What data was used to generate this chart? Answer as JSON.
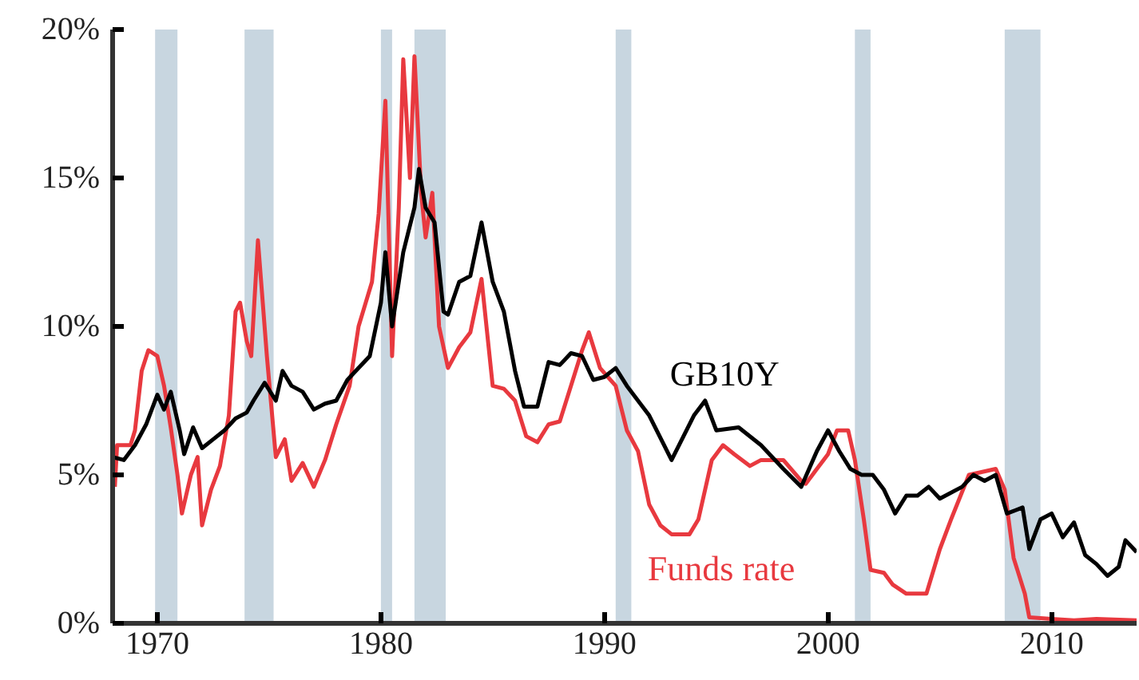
{
  "chart_data": {
    "type": "line",
    "xlim": [
      1968,
      2013.8
    ],
    "ylim": [
      0,
      20
    ],
    "xticks": [
      1970,
      1980,
      1990,
      2000,
      2010
    ],
    "yticks": [
      {
        "value": 0,
        "label": "0%"
      },
      {
        "value": 5,
        "label": "5%"
      },
      {
        "value": 10,
        "label": "10%"
      },
      {
        "value": 15,
        "label": "15%"
      },
      {
        "value": 20,
        "label": "20%"
      }
    ],
    "grid": false,
    "legend": false,
    "bands": [
      {
        "axis": "x",
        "from": 1969.9,
        "to": 1970.9,
        "color": "#c8d6e0"
      },
      {
        "axis": "x",
        "from": 1973.9,
        "to": 1975.2,
        "color": "#c8d6e0"
      },
      {
        "axis": "x",
        "from": 1980.0,
        "to": 1980.5,
        "color": "#c8d6e0"
      },
      {
        "axis": "x",
        "from": 1981.5,
        "to": 1982.9,
        "color": "#c8d6e0"
      },
      {
        "axis": "x",
        "from": 1990.5,
        "to": 1991.2,
        "color": "#c8d6e0"
      },
      {
        "axis": "x",
        "from": 2001.2,
        "to": 2001.9,
        "color": "#c8d6e0"
      },
      {
        "axis": "x",
        "from": 2007.9,
        "to": 2009.5,
        "color": "#c8d6e0"
      }
    ],
    "series": [
      {
        "name": "Funds rate",
        "color": "#e8393f",
        "x": [
          1968.1,
          1968.2,
          1968.8,
          1969.0,
          1969.3,
          1969.6,
          1970.0,
          1970.3,
          1970.6,
          1970.9,
          1971.1,
          1971.5,
          1971.8,
          1972.0,
          1972.4,
          1972.8,
          1973.2,
          1973.5,
          1973.7,
          1974.0,
          1974.2,
          1974.5,
          1974.9,
          1975.3,
          1975.7,
          1976.0,
          1976.5,
          1977.0,
          1977.5,
          1978.0,
          1978.6,
          1979.0,
          1979.6,
          1979.9,
          1980.2,
          1980.5,
          1980.8,
          1981.0,
          1981.3,
          1981.5,
          1981.8,
          1982.0,
          1982.3,
          1982.6,
          1983.0,
          1983.5,
          1984.0,
          1984.5,
          1985.0,
          1985.5,
          1986.0,
          1986.5,
          1987.0,
          1987.5,
          1988.0,
          1988.5,
          1989.0,
          1989.3,
          1989.8,
          1990.5,
          1991.0,
          1991.5,
          1992.0,
          1992.5,
          1993.0,
          1993.8,
          1994.2,
          1994.8,
          1995.3,
          1995.8,
          1996.5,
          1997.0,
          1998.0,
          1998.8,
          1999.0,
          1999.5,
          2000.0,
          2000.4,
          2000.9,
          2001.2,
          2001.6,
          2001.9,
          2002.5,
          2002.9,
          2003.5,
          2004.4,
          2005.0,
          2005.5,
          2006.3,
          2007.5,
          2007.9,
          2008.3,
          2008.8,
          2009.0,
          2010.0,
          2011.0,
          2012.0,
          2013.8
        ],
        "values": [
          4.6,
          6.0,
          6.0,
          6.5,
          8.5,
          9.2,
          9.0,
          8.0,
          6.6,
          5.0,
          3.7,
          5.0,
          5.6,
          3.3,
          4.5,
          5.3,
          7.0,
          10.5,
          10.8,
          9.5,
          9.0,
          12.9,
          9.0,
          5.6,
          6.2,
          4.8,
          5.4,
          4.6,
          5.5,
          6.7,
          8.0,
          10.0,
          11.5,
          13.8,
          17.6,
          9.0,
          14.0,
          19.0,
          15.0,
          19.1,
          14.5,
          13.0,
          14.5,
          10.0,
          8.6,
          9.3,
          9.8,
          11.6,
          8.0,
          7.9,
          7.5,
          6.3,
          6.1,
          6.7,
          6.8,
          8.0,
          9.2,
          9.8,
          8.6,
          8.0,
          6.5,
          5.8,
          4.0,
          3.3,
          3.0,
          3.0,
          3.5,
          5.5,
          6.0,
          5.7,
          5.3,
          5.5,
          5.5,
          4.8,
          4.7,
          5.2,
          5.7,
          6.5,
          6.5,
          5.5,
          3.5,
          1.8,
          1.7,
          1.3,
          1.0,
          1.0,
          2.5,
          3.5,
          5.0,
          5.2,
          4.5,
          2.2,
          1.0,
          0.2,
          0.15,
          0.1,
          0.15,
          0.1
        ]
      },
      {
        "name": "GB10Y",
        "color": "#000000",
        "x": [
          1968.0,
          1968.5,
          1969.0,
          1969.5,
          1970.0,
          1970.3,
          1970.6,
          1971.0,
          1971.2,
          1971.6,
          1972.0,
          1972.5,
          1973.0,
          1973.5,
          1974.0,
          1974.3,
          1974.8,
          1975.3,
          1975.6,
          1976.0,
          1976.5,
          1977.0,
          1977.5,
          1978.0,
          1978.5,
          1979.0,
          1979.5,
          1980.0,
          1980.2,
          1980.5,
          1981.0,
          1981.5,
          1981.7,
          1982.0,
          1982.4,
          1982.8,
          1983.0,
          1983.5,
          1984.0,
          1984.5,
          1985.0,
          1985.5,
          1986.0,
          1986.4,
          1987.0,
          1987.5,
          1988.0,
          1988.5,
          1989.0,
          1989.5,
          1990.0,
          1990.5,
          1991.0,
          1992.0,
          1993.0,
          1994.0,
          1994.5,
          1995.0,
          1996.0,
          1997.0,
          1998.0,
          1998.8,
          1999.5,
          2000.0,
          2000.5,
          2001.0,
          2001.5,
          2002.0,
          2002.5,
          2003.0,
          2003.5,
          2004.0,
          2004.5,
          2005.0,
          2006.0,
          2006.5,
          2007.0,
          2007.5,
          2008.0,
          2008.7,
          2009.0,
          2009.5,
          2010.0,
          2010.5,
          2011.0,
          2011.5,
          2012.0,
          2012.5,
          2013.0,
          2013.3,
          2013.8
        ],
        "values": [
          5.6,
          5.5,
          6.0,
          6.7,
          7.7,
          7.2,
          7.8,
          6.5,
          5.7,
          6.6,
          5.9,
          6.2,
          6.5,
          6.9,
          7.1,
          7.5,
          8.1,
          7.5,
          8.5,
          8.0,
          7.8,
          7.2,
          7.4,
          7.5,
          8.2,
          8.6,
          9.0,
          10.8,
          12.5,
          10.0,
          12.5,
          14.0,
          15.3,
          14.0,
          13.5,
          10.5,
          10.4,
          11.5,
          11.7,
          13.5,
          11.5,
          10.5,
          8.5,
          7.3,
          7.3,
          8.8,
          8.7,
          9.1,
          9.0,
          8.2,
          8.3,
          8.6,
          8.0,
          7.0,
          5.5,
          7.0,
          7.5,
          6.5,
          6.6,
          6.0,
          5.2,
          4.6,
          5.8,
          6.5,
          5.8,
          5.2,
          5.0,
          5.0,
          4.5,
          3.7,
          4.3,
          4.3,
          4.6,
          4.2,
          4.6,
          5.0,
          4.8,
          5.0,
          3.7,
          3.9,
          2.5,
          3.5,
          3.7,
          2.9,
          3.4,
          2.3,
          2.0,
          1.6,
          1.9,
          2.8,
          2.4
        ]
      }
    ]
  }
}
